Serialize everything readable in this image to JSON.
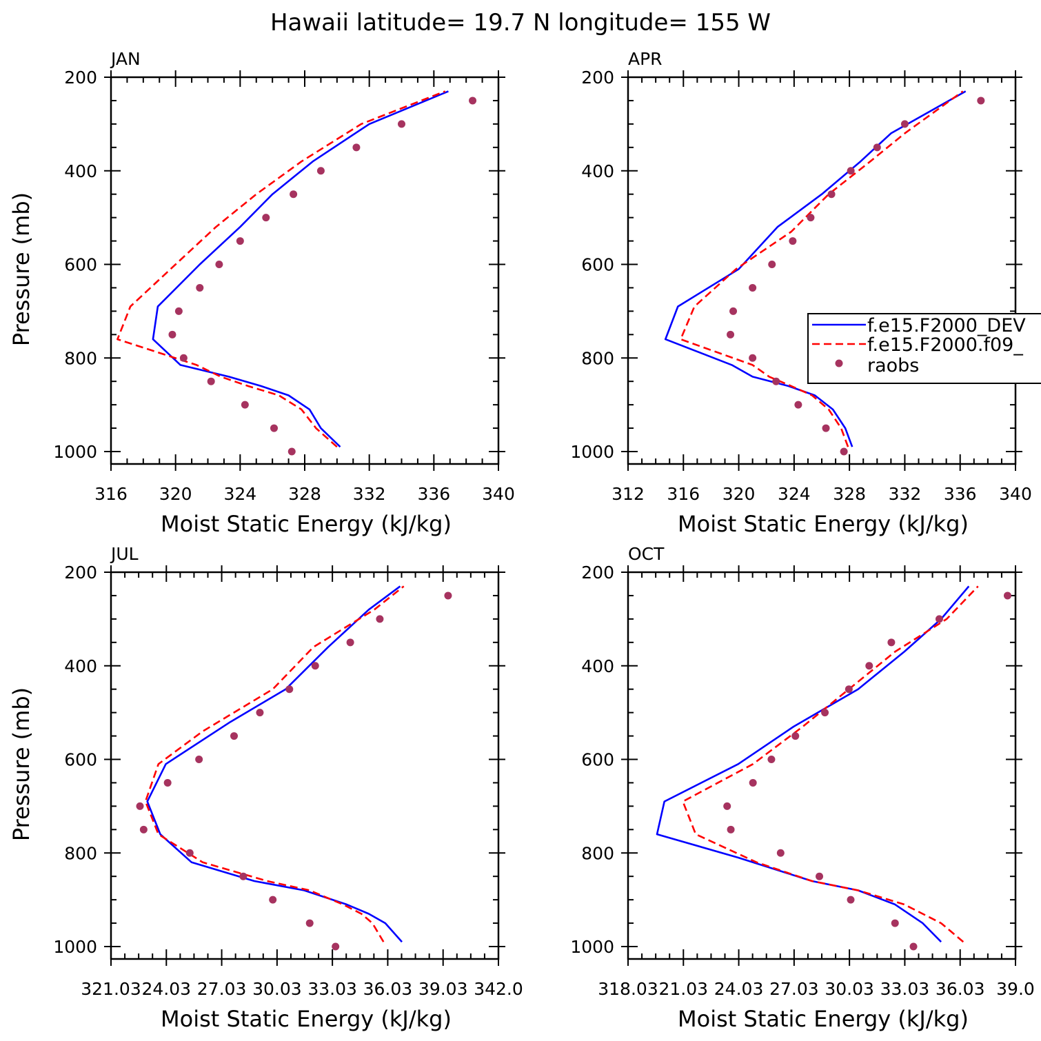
{
  "title": "Hawaii  latitude= 19.7 N longitude= 155 W",
  "colors": {
    "model1": "#0000ff",
    "model2": "#ff0000",
    "raobs": "#a6335f"
  },
  "legend": {
    "entries": [
      "f.e15.F2000_DEV",
      "f.e15.F2000.f09_",
      "raobs"
    ],
    "placement": "right-middle of APR panel"
  },
  "chart_data": [
    {
      "type": "line",
      "panel": "JAN",
      "xlabel": "Moist Static Energy (kJ/kg)",
      "ylabel": "Pressure (mb)",
      "xlim": [
        316,
        340
      ],
      "ylim": [
        1000,
        200
      ],
      "xticks": [
        316,
        320,
        324,
        328,
        332,
        336,
        340
      ],
      "xtick_labels": [
        "316",
        "320",
        "324",
        "328",
        "332",
        "336",
        "340"
      ],
      "yticks": [
        200,
        400,
        600,
        800,
        1000
      ],
      "ytick_labels": [
        "200",
        "400",
        "600",
        "800",
        "1000"
      ],
      "series": [
        {
          "name": "f.e15.F2000_DEV",
          "style": "solid",
          "x": [
            330.2,
            329.0,
            328.3,
            327.0,
            325.3,
            323.3,
            320.3,
            318.6,
            318.9,
            321.5,
            324.0,
            326.0,
            328.5,
            332.0,
            336.9
          ],
          "y": [
            990,
            950,
            910,
            880,
            860,
            840,
            815,
            760,
            690,
            600,
            520,
            450,
            380,
            300,
            230
          ]
        },
        {
          "name": "f.e15.F2000.f09_",
          "style": "dashed",
          "x": [
            330.0,
            328.7,
            327.8,
            326.4,
            324.5,
            322.8,
            321.3,
            316.4,
            317.2,
            320.0,
            322.5,
            325.0,
            327.8,
            331.5,
            336.7
          ],
          "y": [
            990,
            950,
            910,
            880,
            860,
            840,
            815,
            760,
            690,
            600,
            520,
            450,
            380,
            300,
            230
          ]
        }
      ],
      "points": {
        "name": "raobs",
        "x": [
          327.2,
          326.1,
          324.3,
          322.2,
          320.5,
          319.8,
          320.2,
          321.5,
          322.7,
          324.0,
          325.6,
          327.3,
          329.0,
          331.2,
          334.0,
          338.4
        ],
        "y": [
          1000,
          950,
          900,
          850,
          800,
          750,
          700,
          650,
          600,
          550,
          500,
          450,
          400,
          350,
          300,
          250
        ]
      }
    },
    {
      "type": "line",
      "panel": "APR",
      "xlabel": "Moist Static Energy (kJ/kg)",
      "ylabel": "",
      "xlim": [
        312,
        340
      ],
      "ylim": [
        1000,
        200
      ],
      "xticks": [
        312,
        316,
        320,
        324,
        328,
        332,
        336,
        340
      ],
      "xtick_labels": [
        "312",
        "316",
        "320",
        "324",
        "328",
        "332",
        "336",
        "340"
      ],
      "yticks": [
        200,
        400,
        600,
        800,
        1000
      ],
      "ytick_labels": [
        "200",
        "400",
        "600",
        "800",
        "1000"
      ],
      "series": [
        {
          "name": "f.e15.F2000_DEV",
          "style": "solid",
          "x": [
            328.2,
            327.7,
            326.8,
            325.5,
            323.6,
            321.0,
            319.5,
            314.7,
            315.6,
            320.0,
            322.8,
            326.0,
            328.8,
            331.0,
            336.4
          ],
          "y": [
            990,
            950,
            910,
            880,
            860,
            840,
            815,
            760,
            690,
            610,
            520,
            450,
            380,
            320,
            230
          ]
        },
        {
          "name": "f.e15.F2000.f09_",
          "style": "dashed",
          "x": [
            327.9,
            327.4,
            326.5,
            325.3,
            323.8,
            322.2,
            321.0,
            315.8,
            316.8,
            319.8,
            323.8,
            326.5,
            329.5,
            332.0,
            336.2
          ],
          "y": [
            990,
            950,
            910,
            880,
            860,
            840,
            815,
            760,
            690,
            610,
            530,
            450,
            380,
            320,
            230
          ]
        }
      ],
      "points": {
        "name": "raobs",
        "x": [
          327.6,
          326.3,
          324.3,
          322.7,
          321.0,
          319.4,
          319.6,
          321.0,
          322.4,
          323.9,
          325.2,
          326.7,
          328.1,
          330.0,
          332.0,
          337.5
        ],
        "y": [
          1000,
          950,
          900,
          850,
          800,
          750,
          700,
          650,
          600,
          550,
          500,
          450,
          400,
          350,
          300,
          250
        ]
      }
    },
    {
      "type": "line",
      "panel": "JUL",
      "xlabel": "Moist Static Energy (kJ/kg)",
      "ylabel": "Pressure (mb)",
      "xlim": [
        321.03,
        342.03
      ],
      "ylim": [
        1000,
        200
      ],
      "xticks": [
        321.03,
        324.03,
        327.03,
        330.03,
        333.03,
        336.03,
        339.03,
        342.03
      ],
      "xtick_labels": [
        "321.03",
        "24.03",
        "27.03",
        "30.03",
        "33.03",
        "36.03",
        "39.03",
        "342.0"
      ],
      "yticks": [
        200,
        400,
        600,
        800,
        1000
      ],
      "ytick_labels": [
        "200",
        "400",
        "600",
        "800",
        "1000"
      ],
      "series": [
        {
          "name": "f.e15.F2000_DEV",
          "style": "solid",
          "x": [
            336.8,
            335.9,
            335.0,
            333.8,
            331.5,
            328.8,
            325.4,
            323.7,
            323.0,
            324.0,
            327.5,
            330.5,
            332.8,
            335.0,
            336.7
          ],
          "y": [
            990,
            950,
            930,
            910,
            880,
            860,
            820,
            760,
            690,
            610,
            520,
            450,
            360,
            280,
            230
          ]
        },
        {
          "name": "f.e15.F2000.f09_",
          "style": "dashed",
          "x": [
            335.8,
            335.2,
            334.6,
            333.6,
            331.8,
            329.5,
            326.0,
            323.6,
            322.9,
            323.6,
            326.0,
            329.8,
            332.0,
            335.3,
            336.9
          ],
          "y": [
            990,
            950,
            930,
            910,
            880,
            860,
            820,
            760,
            690,
            610,
            540,
            450,
            360,
            280,
            230
          ]
        }
      ],
      "points": {
        "name": "raobs",
        "x": [
          333.2,
          331.8,
          329.8,
          328.2,
          325.3,
          322.8,
          322.6,
          324.1,
          325.8,
          327.7,
          329.1,
          330.7,
          332.1,
          334.0,
          335.6,
          339.3
        ],
        "y": [
          1000,
          950,
          900,
          850,
          800,
          750,
          700,
          650,
          600,
          550,
          500,
          450,
          400,
          350,
          300,
          250
        ]
      }
    },
    {
      "type": "line",
      "panel": "OCT",
      "xlabel": "Moist Static Energy (kJ/kg)",
      "ylabel": "",
      "xlim": [
        318.03,
        339.03
      ],
      "ylim": [
        1000,
        200
      ],
      "xticks": [
        318.03,
        321.03,
        324.03,
        327.03,
        330.03,
        333.03,
        336.03,
        339.03
      ],
      "xtick_labels": [
        "318.03",
        "21.03",
        "24.03",
        "27.03",
        "30.03",
        "33.03",
        "36.03",
        "39.0"
      ],
      "yticks": [
        200,
        400,
        600,
        800,
        1000
      ],
      "ytick_labels": [
        "200",
        "400",
        "600",
        "800",
        "1000"
      ],
      "series": [
        {
          "name": "f.e15.F2000_DEV",
          "style": "solid",
          "x": [
            335.0,
            334.0,
            332.5,
            330.5,
            328.0,
            324.0,
            319.6,
            320.0,
            324.0,
            327.0,
            330.5,
            333.0,
            335.0,
            336.5
          ],
          "y": [
            990,
            950,
            910,
            880,
            860,
            810,
            760,
            690,
            610,
            530,
            450,
            370,
            300,
            230
          ]
        },
        {
          "name": "f.e15.F2000.f09_",
          "style": "dashed",
          "x": [
            336.2,
            335.0,
            333.0,
            330.5,
            328.0,
            325.0,
            321.7,
            321.0,
            324.8,
            327.5,
            330.0,
            332.5,
            335.3,
            337.0
          ],
          "y": [
            990,
            950,
            910,
            880,
            860,
            820,
            760,
            690,
            610,
            530,
            450,
            370,
            300,
            230
          ]
        }
      ],
      "points": {
        "name": "raobs",
        "x": [
          333.5,
          332.5,
          330.1,
          328.4,
          326.3,
          323.6,
          323.4,
          324.8,
          325.8,
          327.1,
          328.7,
          330.0,
          331.1,
          332.3,
          334.9,
          338.6
        ],
        "y": [
          1000,
          950,
          900,
          850,
          800,
          750,
          700,
          650,
          600,
          550,
          500,
          450,
          400,
          350,
          300,
          250
        ]
      }
    }
  ]
}
